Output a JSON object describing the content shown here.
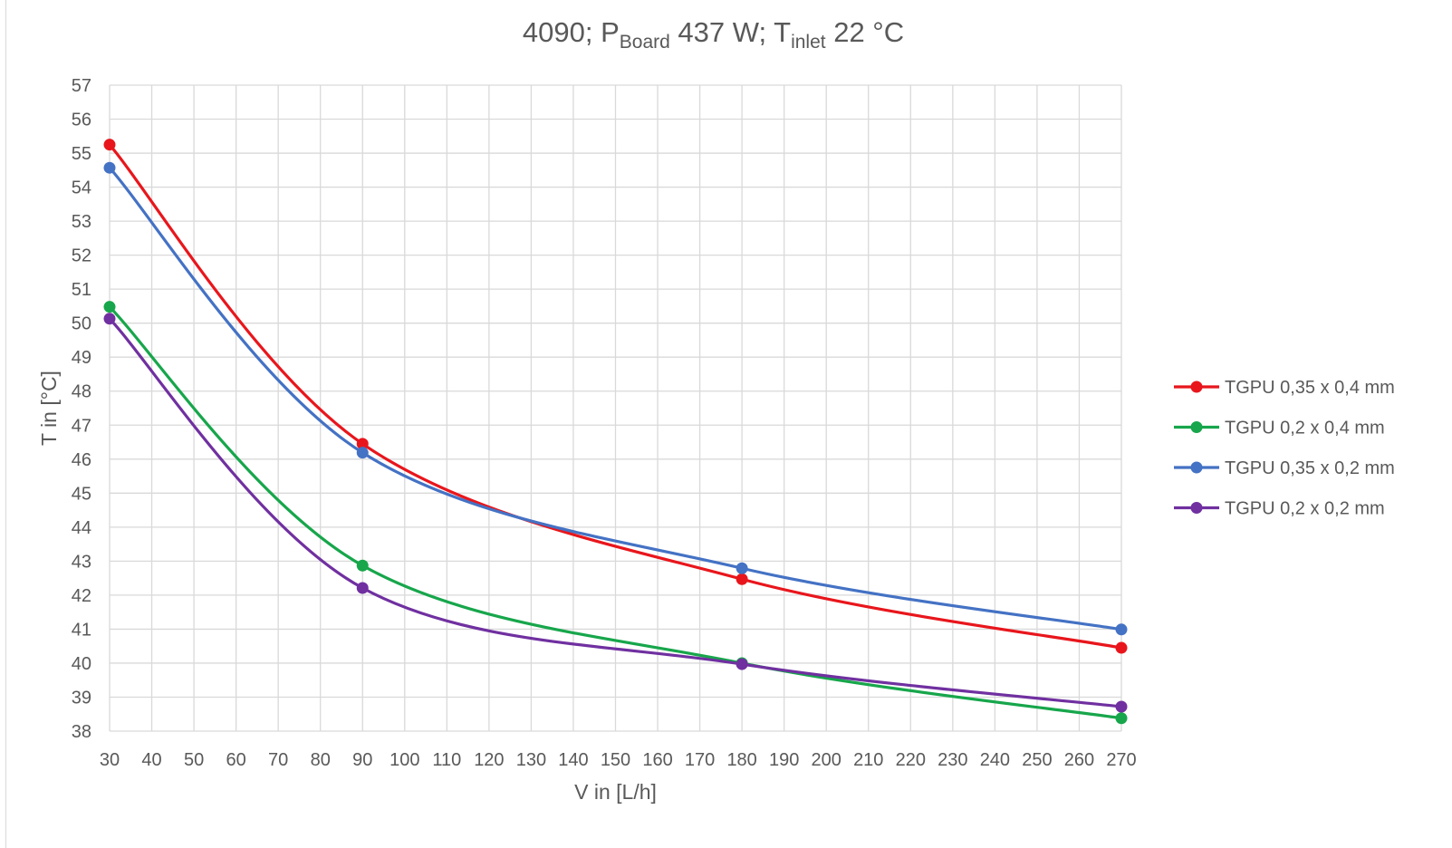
{
  "chart_data": {
    "type": "line",
    "title": {
      "prefix": "4090; P",
      "sub1": "Board",
      "mid": " 437 W; T",
      "sub2": "inlet",
      "suffix": " 22 °C"
    },
    "xlabel": "V in [L/h]",
    "ylabel": "T in [°C]",
    "xlim": [
      30,
      270
    ],
    "ylim": [
      38,
      57
    ],
    "xticks": [
      30,
      40,
      50,
      60,
      70,
      80,
      90,
      100,
      110,
      120,
      130,
      140,
      150,
      160,
      170,
      180,
      190,
      200,
      210,
      220,
      230,
      240,
      250,
      260,
      270
    ],
    "yticks": [
      38,
      39,
      40,
      41,
      42,
      43,
      44,
      45,
      46,
      47,
      48,
      49,
      50,
      51,
      52,
      53,
      54,
      55,
      56,
      57
    ],
    "grid": true,
    "smooth": true,
    "legend_position": "right",
    "x": [
      30,
      90,
      180,
      270
    ],
    "series": [
      {
        "name": "TGPU 0,35 x 0,4 mm",
        "color": "#e8161c",
        "values": [
          55.25,
          46.45,
          42.47,
          40.45
        ]
      },
      {
        "name": "TGPU 0,2 x 0,4 mm",
        "color": "#17a64b",
        "values": [
          50.48,
          42.87,
          40.0,
          38.38
        ]
      },
      {
        "name": "TGPU 0,35 x 0,2 mm",
        "color": "#4472c4",
        "values": [
          54.57,
          46.19,
          42.79,
          40.99
        ]
      },
      {
        "name": "TGPU 0,2 x 0,2 mm",
        "color": "#7030a0",
        "values": [
          50.13,
          42.21,
          39.97,
          38.72
        ]
      }
    ]
  }
}
